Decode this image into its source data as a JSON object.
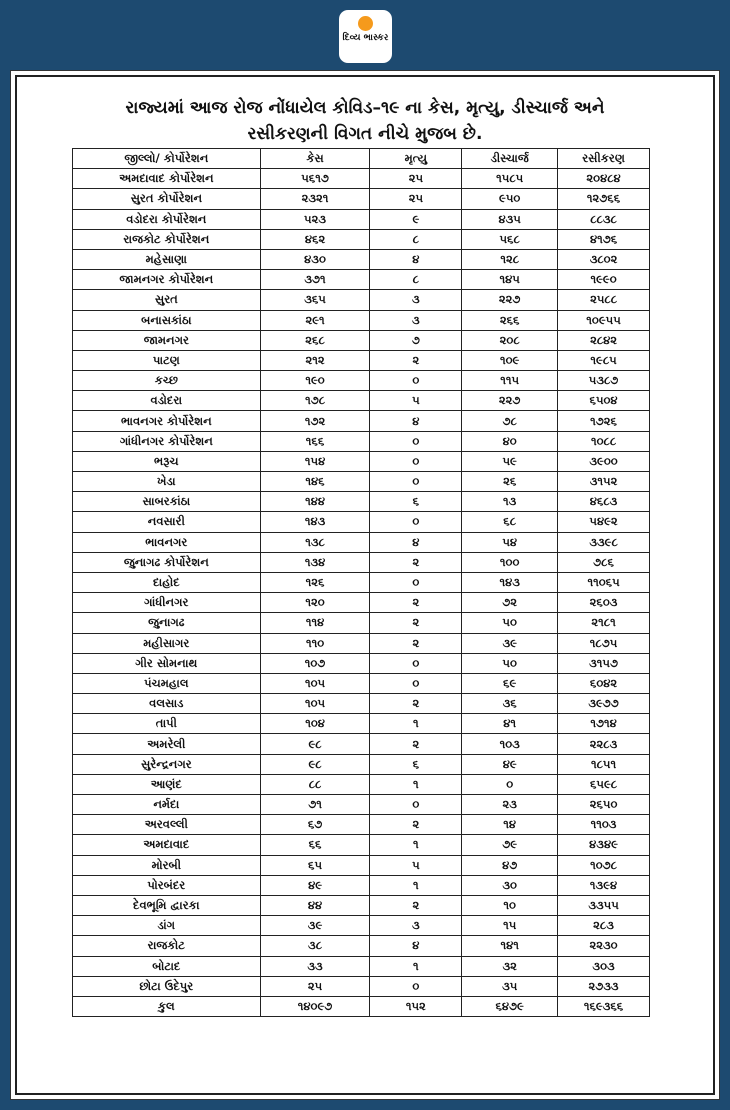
{
  "brand": {
    "logo_text": "દિવ્ય ભાસ્કર",
    "accent": "#f59a1c",
    "background": "#1d4a70"
  },
  "title": {
    "line1": "રાજ્યમાં આજ રોજ નોંધાયેલ કોવિડ–૧૯ ના કેસ, મૃત્યુ, ડીસ્ચાર્જ  અને",
    "line2": "રસીકરણની વિગત નીચે મુજબ છે."
  },
  "table": {
    "headers": [
      "જીલ્લો/ કોર્પોરેશન",
      "કેસ",
      "મૃત્યુ",
      "ડીસ્ચાર્જ",
      "રસીકરણ"
    ],
    "rows": [
      [
        "અમદાવાદ કોર્પોરેશન",
        "૫૬૧૭",
        "૨૫",
        "૧૫૮૫",
        "૨૦૪૮૪"
      ],
      [
        "સુરત કોર્પોરેશન",
        "૨૩૨૧",
        "૨૫",
        "૯૫૦",
        "૧૨૭૬૬"
      ],
      [
        "વડોદરા કોર્પોરેશન",
        "૫૨૩",
        "૯",
        "૪૩૫",
        "૮૮૩૮"
      ],
      [
        "રાજકોટ કોર્પોરેશન",
        "૪૬૨",
        "૮",
        "૫૬૮",
        "૪૧૭૬"
      ],
      [
        "મહેસાણા",
        "૪૩૦",
        "૪",
        "૧૨૮",
        "૩૮૦૨"
      ],
      [
        "જામનગર કોર્પોરેશન",
        "૩૭૧",
        "૮",
        "૧૪૫",
        "૧૯૯૦"
      ],
      [
        "સુરત",
        "૩૬૫",
        "૩",
        "૨૨૭",
        "૨૫૮૮"
      ],
      [
        "બનાસકાંઠા",
        "૨૯૧",
        "૩",
        "૨૬૬",
        "૧૦૯૫૫"
      ],
      [
        "જામનગર",
        "૨૬૮",
        "૭",
        "૨૦૮",
        "૨૮૪૨"
      ],
      [
        "પાટણ",
        "૨૧૨",
        "૨",
        "૧૦૯",
        "૧૯૮૫"
      ],
      [
        "કચ્છ",
        "૧૯૦",
        "૦",
        "૧૧૫",
        "૫૩૮૭"
      ],
      [
        "વડોદરા",
        "૧૭૮",
        "૫",
        "૨૨૭",
        "૬૫૦૪"
      ],
      [
        "ભાવનગર કોર્પોરેશન",
        "૧૭૨",
        "૪",
        "૭૮",
        "૧૭૨૬"
      ],
      [
        "ગાંધીનગર કોર્પોરેશન",
        "૧૬૬",
        "૦",
        "૪૦",
        "૧૦૮૮"
      ],
      [
        "ભરૂચ",
        "૧૫૪",
        "૦",
        "૫૯",
        "૩૯૦૦"
      ],
      [
        "ખેડા",
        "૧૪૬",
        "૦",
        "૨૬",
        "૩૧૫૨"
      ],
      [
        "સાબરકાંઠા",
        "૧૪૪",
        "૬",
        "૧૩",
        "૪૬૮૩"
      ],
      [
        "નવસારી",
        "૧૪૩",
        "૦",
        "૬૮",
        "૫૪૯૨"
      ],
      [
        "ભાવનગર",
        "૧૩૮",
        "૪",
        "૫૪",
        "૩૩૯૮"
      ],
      [
        "જુનાગઢ કોર્પોરેશન",
        "૧૩૪",
        "૨",
        "૧૦૦",
        "૭૮૬"
      ],
      [
        "દાહોદ",
        "૧૨૬",
        "૦",
        "૧૪૩",
        "૧૧૦૬૫"
      ],
      [
        "ગાંધીનગર",
        "૧૨૦",
        "૨",
        "૭૨",
        "૨૬૦૩"
      ],
      [
        "જુનાગઢ",
        "૧૧૪",
        "૨",
        "૫૦",
        "૨૧૮૧"
      ],
      [
        "મહીસાગર",
        "૧૧૦",
        "૨",
        "૩૯",
        "૧૮૭૫"
      ],
      [
        "ગીર સોમનાથ",
        "૧૦૭",
        "૦",
        "૫૦",
        "૩૧૫૭"
      ],
      [
        "પંચમહાલ",
        "૧૦૫",
        "૦",
        "૬૯",
        "૬૦૪૨"
      ],
      [
        "વલસાડ",
        "૧૦૫",
        "૨",
        "૩૬",
        "૩૯૭૭"
      ],
      [
        "તાપી",
        "૧૦૪",
        "૧",
        "૪૧",
        "૧૭૧૪"
      ],
      [
        "અમરેલી",
        "૯૮",
        "૨",
        "૧૦૩",
        "૨૨૮૩"
      ],
      [
        "સુરેન્દ્રનગર",
        "૯૮",
        "૬",
        "૪૯",
        "૧૮૫૧"
      ],
      [
        "આણંદ",
        "૮૮",
        "૧",
        "૦",
        "૬૫૯૮"
      ],
      [
        "નર્મદા",
        "૭૧",
        "૦",
        "૨૩",
        "૨૬૫૦"
      ],
      [
        "અરવલ્લી",
        "૬૭",
        "૨",
        "૧૪",
        "૧૧૦૩"
      ],
      [
        "અમદાવાદ",
        "૬૬",
        "૧",
        "૭૯",
        "૪૩૪૯"
      ],
      [
        "મોરબી",
        "૬૫",
        "૫",
        "૪૭",
        "૧૦૭૮"
      ],
      [
        "પોરબંદર",
        "૪૯",
        "૧",
        "૩૦",
        "૧૩૯૪"
      ],
      [
        "દેવભૂમિ દ્વારકા",
        "૪૪",
        "૨",
        "૧૦",
        "૩૩૫૫"
      ],
      [
        "ડાંગ",
        "૩૯",
        "૩",
        "૧૫",
        "૨૮૩"
      ],
      [
        "રાજકોટ",
        "૩૮",
        "૪",
        "૧૪૧",
        "૨૨૩૦"
      ],
      [
        "બોટાદ",
        "૩૩",
        "૧",
        "૩૨",
        "૩૦૩"
      ],
      [
        "છોટા ઉદેપુર",
        "૨૫",
        "૦",
        "૩૫",
        "૨૭૩૩"
      ]
    ],
    "total": [
      "કુલ",
      "૧૪૦૯૭",
      "૧૫૨",
      "૬૪૭૯",
      "૧૬૯૩૬૬"
    ]
  }
}
